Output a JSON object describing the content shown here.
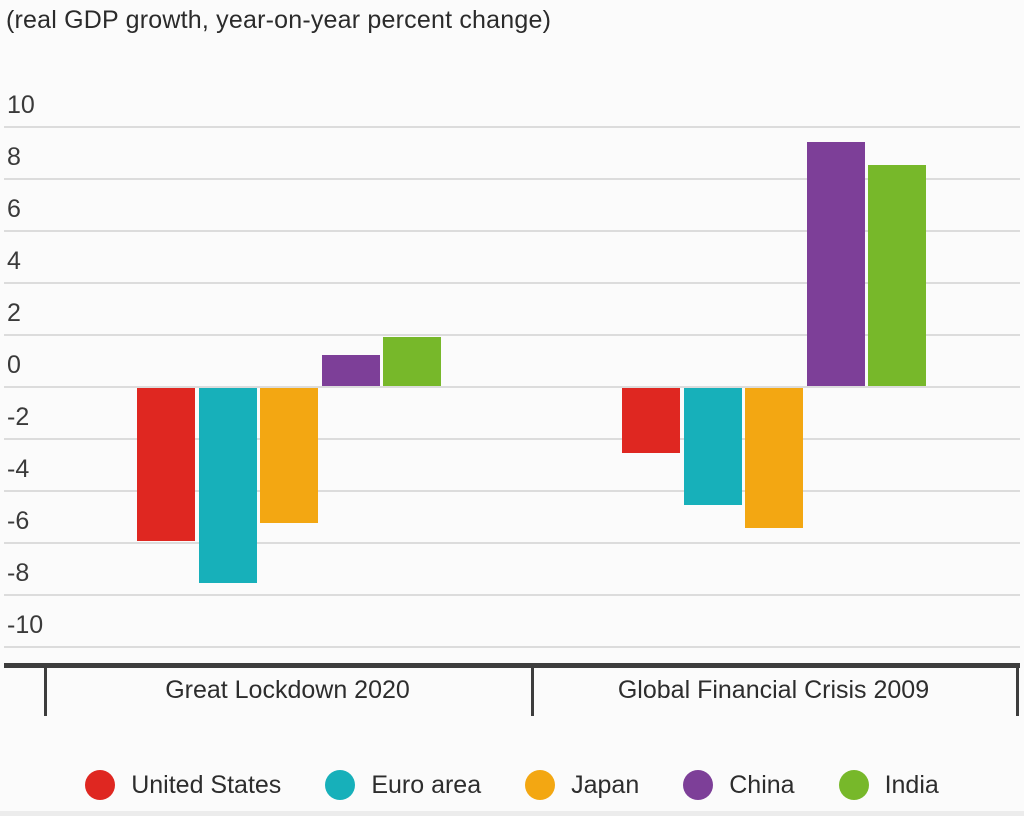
{
  "title": "(real GDP growth, year-on-year percent change)",
  "chart_data": {
    "type": "bar",
    "title": "(real GDP growth, year-on-year percent change)",
    "categories": [
      "Great Lockdown 2020",
      "Global Financial Crisis 2009"
    ],
    "series": [
      {
        "name": "United States",
        "color": "#df2721",
        "values": [
          -5.9,
          -2.5
        ]
      },
      {
        "name": "Euro area",
        "color": "#17b0ba",
        "values": [
          -7.5,
          -4.5
        ]
      },
      {
        "name": "Japan",
        "color": "#f3a712",
        "values": [
          -5.2,
          -5.4
        ]
      },
      {
        "name": "China",
        "color": "#7d3f98",
        "values": [
          1.2,
          9.4
        ]
      },
      {
        "name": "India",
        "color": "#77b82a",
        "values": [
          1.9,
          8.5
        ]
      }
    ],
    "xlabel": "",
    "ylabel": "",
    "ylim": [
      -10,
      10
    ],
    "yticks": [
      10,
      8,
      6,
      4,
      2,
      0,
      -2,
      -4,
      -6,
      -8,
      -10
    ],
    "grid": true,
    "legend_position": "bottom",
    "legend": [
      "United States",
      "Euro area",
      "Japan",
      "China",
      "India"
    ]
  },
  "colors": {
    "background": "#fbfbfb",
    "gridline": "#dcdcdc",
    "axis": "#3d3d3d",
    "text": "#2d2d2d"
  }
}
